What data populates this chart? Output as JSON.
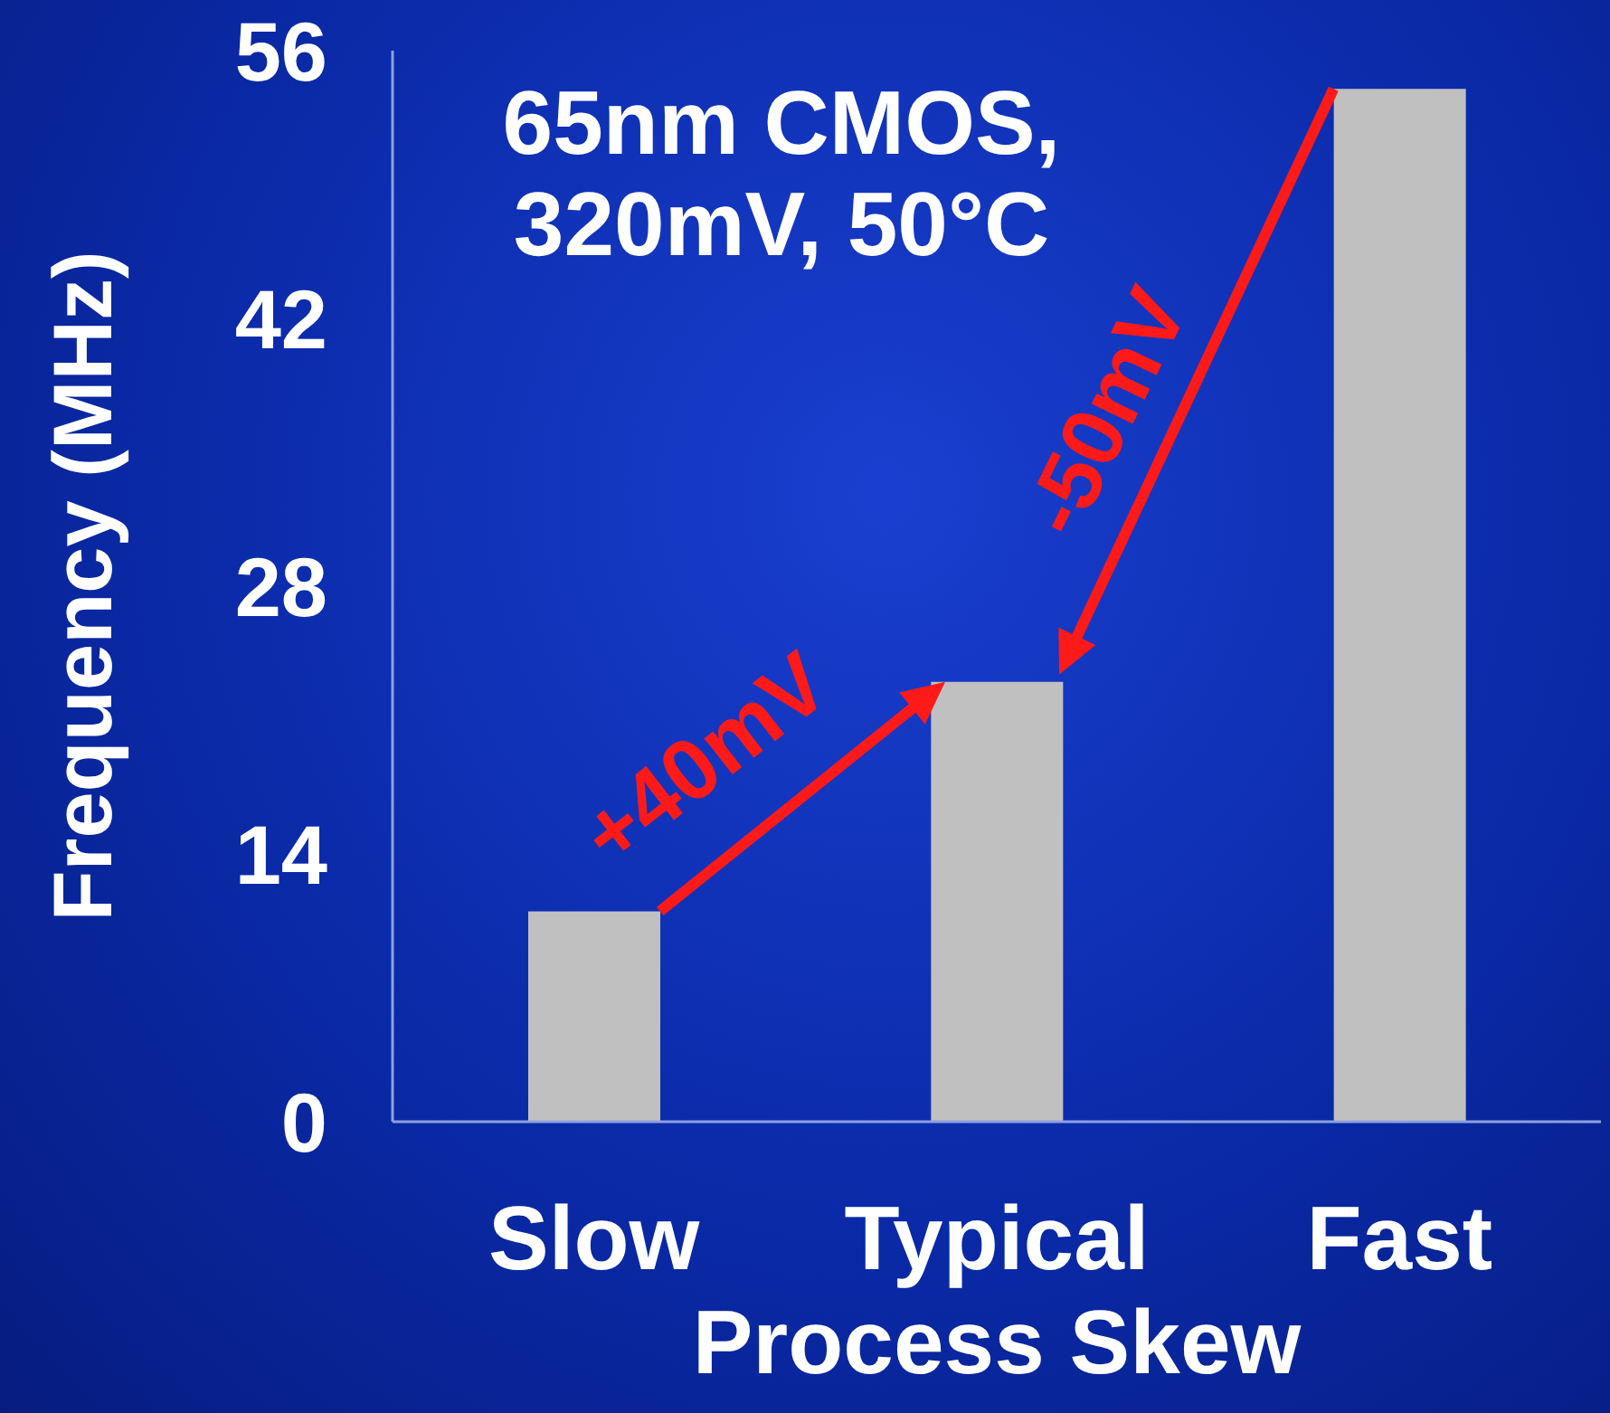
{
  "chart_data": {
    "type": "bar",
    "xlabel": "Process Skew",
    "ylabel": "Frequency (MHz)",
    "categories": [
      "Slow",
      "Typical",
      "Fast"
    ],
    "values": [
      11,
      23,
      54
    ],
    "color": "#c0c0c0",
    "ylim": [
      0,
      56
    ],
    "yticks": [
      0,
      14,
      28,
      42,
      56
    ],
    "grid": false,
    "annotations": [
      "65nm CMOS, 320mV, 50°C",
      "+40mV",
      "-50mV"
    ]
  }
}
